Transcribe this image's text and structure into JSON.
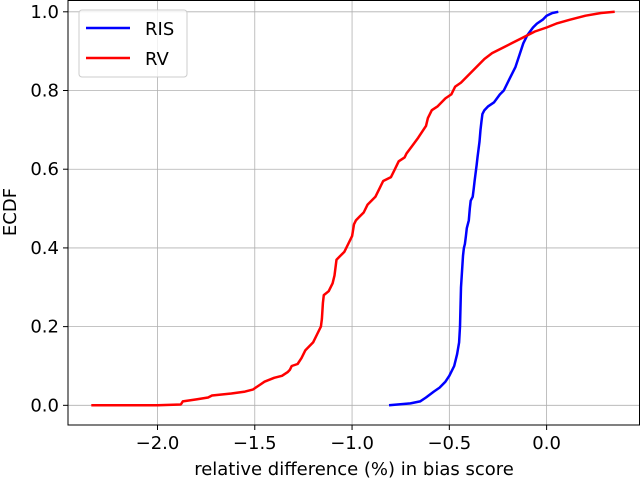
{
  "chart_data": {
    "type": "line",
    "xlabel": "relative difference (%) in bias score",
    "ylabel": "ECDF",
    "xlim": [
      -2.46,
      0.48
    ],
    "ylim": [
      -0.05,
      1.03
    ],
    "grid": true,
    "legend_position": "top-left",
    "x_ticks": [
      -2.0,
      -1.5,
      -1.0,
      -0.5,
      0.0
    ],
    "x_tick_labels": [
      "−2.0",
      "−1.5",
      "−1.0",
      "−0.5",
      "0.0"
    ],
    "y_ticks": [
      0.0,
      0.2,
      0.4,
      0.6,
      0.8,
      1.0
    ],
    "y_tick_labels": [
      "0.0",
      "0.2",
      "0.4",
      "0.6",
      "0.8",
      "1.0"
    ],
    "series": [
      {
        "name": "RIS",
        "color": "#0000ff",
        "points": [
          [
            -0.81,
            0.0
          ],
          [
            -0.7,
            0.005
          ],
          [
            -0.65,
            0.01
          ],
          [
            -0.62,
            0.02
          ],
          [
            -0.58,
            0.035
          ],
          [
            -0.55,
            0.045
          ],
          [
            -0.52,
            0.06
          ],
          [
            -0.5,
            0.075
          ],
          [
            -0.475,
            0.1
          ],
          [
            -0.46,
            0.13
          ],
          [
            -0.45,
            0.16
          ],
          [
            -0.445,
            0.2
          ],
          [
            -0.44,
            0.3
          ],
          [
            -0.43,
            0.38
          ],
          [
            -0.425,
            0.4
          ],
          [
            -0.42,
            0.41
          ],
          [
            -0.415,
            0.43
          ],
          [
            -0.41,
            0.45
          ],
          [
            -0.4,
            0.47
          ],
          [
            -0.395,
            0.5
          ],
          [
            -0.39,
            0.52
          ],
          [
            -0.38,
            0.53
          ],
          [
            -0.375,
            0.55
          ],
          [
            -0.37,
            0.57
          ],
          [
            -0.365,
            0.59
          ],
          [
            -0.36,
            0.61
          ],
          [
            -0.355,
            0.63
          ],
          [
            -0.35,
            0.65
          ],
          [
            -0.345,
            0.67
          ],
          [
            -0.34,
            0.7
          ],
          [
            -0.335,
            0.72
          ],
          [
            -0.33,
            0.74
          ],
          [
            -0.32,
            0.75
          ],
          [
            -0.3,
            0.76
          ],
          [
            -0.27,
            0.77
          ],
          [
            -0.24,
            0.79
          ],
          [
            -0.22,
            0.8
          ],
          [
            -0.19,
            0.83
          ],
          [
            -0.16,
            0.86
          ],
          [
            -0.14,
            0.89
          ],
          [
            -0.12,
            0.92
          ],
          [
            -0.1,
            0.94
          ],
          [
            -0.07,
            0.96
          ],
          [
            -0.05,
            0.97
          ],
          [
            -0.02,
            0.98
          ],
          [
            0.0,
            0.99
          ],
          [
            0.03,
            0.997
          ],
          [
            0.06,
            1.0
          ]
        ]
      },
      {
        "name": "RV",
        "color": "#ff0000",
        "points": [
          [
            -2.34,
            0.0
          ],
          [
            -2.0,
            0.0
          ],
          [
            -1.88,
            0.002
          ],
          [
            -1.87,
            0.01
          ],
          [
            -1.8,
            0.015
          ],
          [
            -1.74,
            0.02
          ],
          [
            -1.72,
            0.025
          ],
          [
            -1.62,
            0.03
          ],
          [
            -1.55,
            0.035
          ],
          [
            -1.51,
            0.04
          ],
          [
            -1.48,
            0.05
          ],
          [
            -1.45,
            0.06
          ],
          [
            -1.4,
            0.07
          ],
          [
            -1.36,
            0.075
          ],
          [
            -1.33,
            0.085
          ],
          [
            -1.32,
            0.09
          ],
          [
            -1.31,
            0.1
          ],
          [
            -1.28,
            0.105
          ],
          [
            -1.26,
            0.12
          ],
          [
            -1.24,
            0.14
          ],
          [
            -1.22,
            0.15
          ],
          [
            -1.2,
            0.16
          ],
          [
            -1.18,
            0.18
          ],
          [
            -1.16,
            0.2
          ],
          [
            -1.155,
            0.22
          ],
          [
            -1.15,
            0.26
          ],
          [
            -1.145,
            0.28
          ],
          [
            -1.12,
            0.29
          ],
          [
            -1.1,
            0.31
          ],
          [
            -1.09,
            0.33
          ],
          [
            -1.08,
            0.37
          ],
          [
            -1.06,
            0.38
          ],
          [
            -1.04,
            0.39
          ],
          [
            -1.02,
            0.41
          ],
          [
            -1.0,
            0.43
          ],
          [
            -0.99,
            0.46
          ],
          [
            -0.98,
            0.47
          ],
          [
            -0.96,
            0.48
          ],
          [
            -0.94,
            0.49
          ],
          [
            -0.92,
            0.51
          ],
          [
            -0.88,
            0.53
          ],
          [
            -0.85,
            0.56
          ],
          [
            -0.84,
            0.57
          ],
          [
            -0.8,
            0.58
          ],
          [
            -0.78,
            0.6
          ],
          [
            -0.76,
            0.62
          ],
          [
            -0.73,
            0.63
          ],
          [
            -0.72,
            0.64
          ],
          [
            -0.69,
            0.66
          ],
          [
            -0.66,
            0.68
          ],
          [
            -0.62,
            0.71
          ],
          [
            -0.61,
            0.73
          ],
          [
            -0.59,
            0.75
          ],
          [
            -0.56,
            0.76
          ],
          [
            -0.52,
            0.78
          ],
          [
            -0.49,
            0.79
          ],
          [
            -0.47,
            0.81
          ],
          [
            -0.44,
            0.82
          ],
          [
            -0.4,
            0.84
          ],
          [
            -0.36,
            0.86
          ],
          [
            -0.32,
            0.88
          ],
          [
            -0.28,
            0.895
          ],
          [
            -0.22,
            0.91
          ],
          [
            -0.18,
            0.92
          ],
          [
            -0.12,
            0.935
          ],
          [
            -0.06,
            0.95
          ],
          [
            0.0,
            0.96
          ],
          [
            0.05,
            0.97
          ],
          [
            0.12,
            0.98
          ],
          [
            0.2,
            0.99
          ],
          [
            0.28,
            0.997
          ],
          [
            0.35,
            1.0
          ]
        ]
      }
    ]
  }
}
